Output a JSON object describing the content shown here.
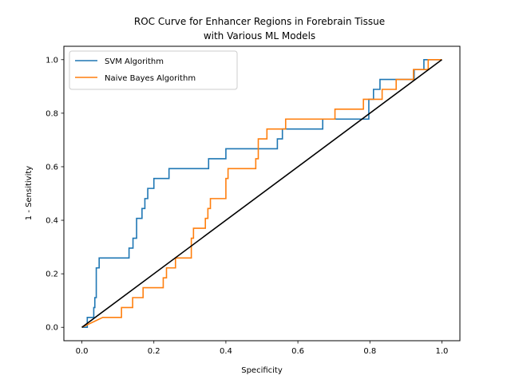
{
  "chart_data": {
    "type": "line",
    "title_line1": "ROC Curve for Enhancer Regions in Forebrain Tissue",
    "title_line2": "with Various ML Models",
    "xlabel": "Specificity",
    "ylabel": "1 - Sensitivity",
    "xlim": [
      -0.05,
      1.05
    ],
    "ylim": [
      -0.05,
      1.05
    ],
    "xticks": [
      "0.0",
      "0.2",
      "0.4",
      "0.6",
      "0.8",
      "1.0"
    ],
    "yticks": [
      "0.0",
      "0.2",
      "0.4",
      "0.6",
      "0.8",
      "1.0"
    ],
    "grid": false,
    "legend_position": "top-left",
    "series": [
      {
        "name": "SVM Algorithm",
        "color": "#1f77b4",
        "x": [
          0.0,
          0.015,
          0.015,
          0.033,
          0.033,
          0.036,
          0.036,
          0.04,
          0.04,
          0.048,
          0.048,
          0.131,
          0.131,
          0.142,
          0.142,
          0.152,
          0.152,
          0.167,
          0.167,
          0.175,
          0.175,
          0.183,
          0.183,
          0.2,
          0.2,
          0.242,
          0.242,
          0.352,
          0.352,
          0.4,
          0.4,
          0.543,
          0.543,
          0.557,
          0.557,
          0.669,
          0.669,
          0.797,
          0.797,
          0.81,
          0.81,
          0.828,
          0.828,
          0.923,
          0.923,
          0.95,
          0.95,
          1.0
        ],
        "y": [
          0.0,
          0.0,
          0.037,
          0.037,
          0.074,
          0.074,
          0.111,
          0.111,
          0.222,
          0.222,
          0.259,
          0.259,
          0.296,
          0.296,
          0.333,
          0.333,
          0.407,
          0.407,
          0.444,
          0.444,
          0.481,
          0.481,
          0.519,
          0.519,
          0.556,
          0.556,
          0.593,
          0.593,
          0.63,
          0.63,
          0.667,
          0.667,
          0.704,
          0.704,
          0.741,
          0.741,
          0.778,
          0.778,
          0.852,
          0.852,
          0.889,
          0.889,
          0.926,
          0.926,
          0.963,
          0.963,
          1.0,
          1.0
        ]
      },
      {
        "name": "Naive Bayes Algorithm",
        "color": "#ff7f0e",
        "x": [
          0.0,
          0.058,
          0.11,
          0.11,
          0.141,
          0.141,
          0.17,
          0.17,
          0.226,
          0.226,
          0.235,
          0.235,
          0.26,
          0.26,
          0.304,
          0.304,
          0.31,
          0.31,
          0.343,
          0.343,
          0.35,
          0.35,
          0.357,
          0.357,
          0.4,
          0.4,
          0.406,
          0.406,
          0.483,
          0.483,
          0.49,
          0.49,
          0.514,
          0.514,
          0.566,
          0.566,
          0.703,
          0.703,
          0.782,
          0.782,
          0.834,
          0.834,
          0.873,
          0.873,
          0.921,
          0.921,
          0.962,
          0.962,
          1.0
        ],
        "y": [
          0.0,
          0.037,
          0.037,
          0.074,
          0.074,
          0.111,
          0.111,
          0.148,
          0.148,
          0.185,
          0.185,
          0.222,
          0.222,
          0.259,
          0.259,
          0.333,
          0.333,
          0.37,
          0.37,
          0.407,
          0.407,
          0.444,
          0.444,
          0.481,
          0.481,
          0.556,
          0.556,
          0.593,
          0.593,
          0.63,
          0.63,
          0.704,
          0.704,
          0.741,
          0.741,
          0.778,
          0.778,
          0.815,
          0.815,
          0.852,
          0.852,
          0.889,
          0.889,
          0.926,
          0.926,
          0.963,
          0.963,
          1.0,
          1.0
        ]
      },
      {
        "color": "#000000",
        "x": [
          0.0,
          1.0
        ],
        "y": [
          0.0,
          1.0
        ]
      }
    ]
  }
}
